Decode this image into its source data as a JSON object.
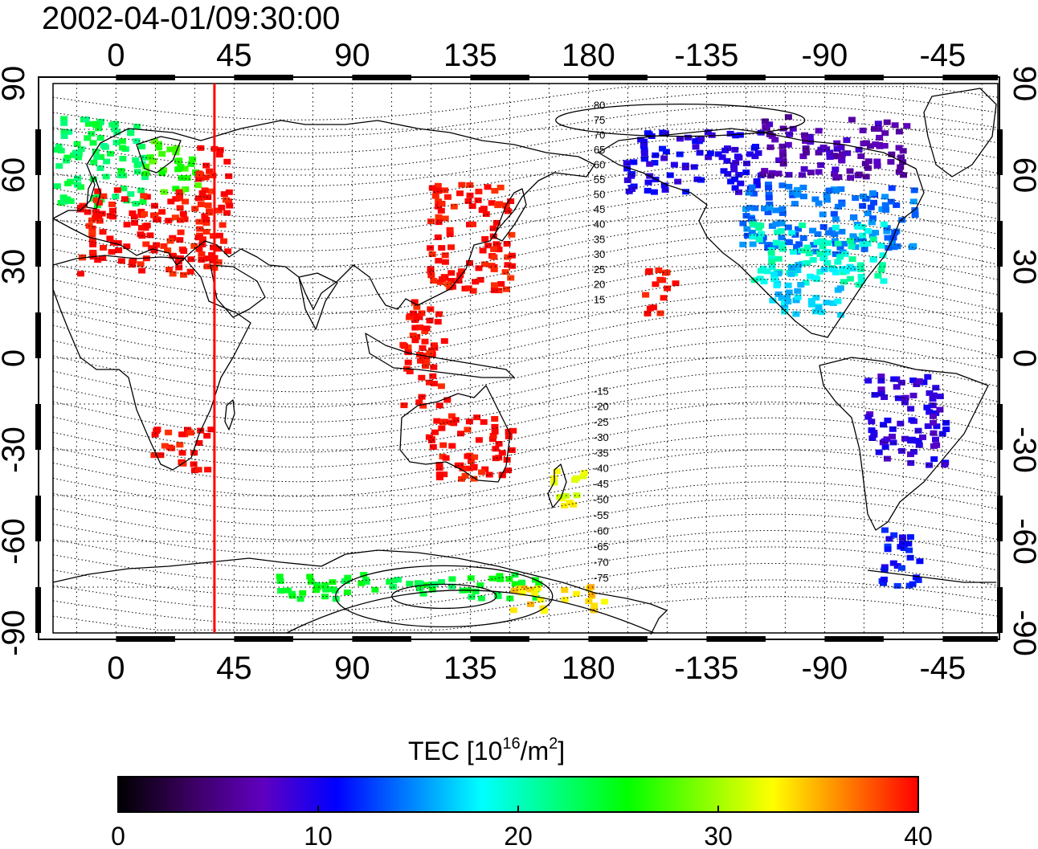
{
  "title": "2002-04-01/09:30:00",
  "x_ticks": [
    "0",
    "45",
    "90",
    "135",
    "180",
    "-135",
    "-90",
    "-45"
  ],
  "y_ticks": [
    "90",
    "60",
    "30",
    "0",
    "-30",
    "-60",
    "-90"
  ],
  "contour_labels": [
    "80",
    "75",
    "70",
    "65",
    "60",
    "55",
    "50",
    "45",
    "40",
    "35",
    "30",
    "25",
    "20",
    "15",
    "-15",
    "-20",
    "-25",
    "-30",
    "-35",
    "-40",
    "-45",
    "-50",
    "-55",
    "-60",
    "-65",
    "-70",
    "-75"
  ],
  "colorbar": {
    "title_main": "TEC  [10",
    "title_sup1": "16",
    "title_mid": "/m",
    "title_sup2": "2",
    "title_end": "]",
    "ticks": [
      "0",
      "10",
      "20",
      "30",
      "40"
    ],
    "range": [
      0,
      40
    ],
    "colors": [
      "#000000",
      "#3a0060",
      "#6000c0",
      "#0000ff",
      "#0080ff",
      "#00ffff",
      "#00ff80",
      "#00ff00",
      "#80ff00",
      "#ffff00",
      "#ff8000",
      "#ff0000"
    ]
  },
  "map": {
    "lon_range": [
      -24,
      336
    ],
    "lat_range": [
      -90,
      90
    ],
    "marker_longitude": 37.5,
    "marker_color": "#ff0000",
    "grid": "dotted"
  },
  "tec_patches": [
    {
      "lon": [
        -24,
        10
      ],
      "lat": [
        50,
        80
      ],
      "tec": 23
    },
    {
      "lon": [
        10,
        30
      ],
      "lat": [
        55,
        72
      ],
      "tec": 27
    },
    {
      "lon": [
        -15,
        35
      ],
      "lat": [
        28,
        56
      ],
      "tec": 40
    },
    {
      "lon": [
        30,
        42
      ],
      "lat": [
        30,
        70
      ],
      "tec": 40
    },
    {
      "lon": [
        118,
        150
      ],
      "lat": [
        22,
        58
      ],
      "tec": 40
    },
    {
      "lon": [
        108,
        125
      ],
      "lat": [
        -15,
        20
      ],
      "tec": 40
    },
    {
      "lon": [
        13,
        35
      ],
      "lat": [
        -36,
        -22
      ],
      "tec": 40
    },
    {
      "lon": [
        118,
        150
      ],
      "lat": [
        -40,
        -18
      ],
      "tec": 40
    },
    {
      "lon": [
        165,
        178
      ],
      "lat": [
        -48,
        -36
      ],
      "tec": 32
    },
    {
      "lon": [
        200,
        212
      ],
      "lat": [
        15,
        30
      ],
      "tec": 40
    },
    {
      "lon": [
        193,
        245
      ],
      "lat": [
        55,
        75
      ],
      "tec": 10
    },
    {
      "lon": [
        245,
        300
      ],
      "lat": [
        60,
        80
      ],
      "tec": 7
    },
    {
      "lon": [
        237,
        305
      ],
      "lat": [
        35,
        58
      ],
      "tec": 14
    },
    {
      "lon": [
        240,
        292
      ],
      "lat": [
        25,
        45
      ],
      "tec": 20
    },
    {
      "lon": [
        248,
        280
      ],
      "lat": [
        15,
        32
      ],
      "tec": 17
    },
    {
      "lon": [
        285,
        315
      ],
      "lat": [
        -35,
        -5
      ],
      "tec": 9
    },
    {
      "lon": [
        290,
        305
      ],
      "lat": [
        -75,
        -55
      ],
      "tec": 11
    },
    {
      "lon": [
        60,
        160
      ],
      "lat": [
        -78,
        -70
      ],
      "tec": 24
    },
    {
      "lon": [
        150,
        185
      ],
      "lat": [
        -82,
        -74
      ],
      "tec": 34
    }
  ]
}
